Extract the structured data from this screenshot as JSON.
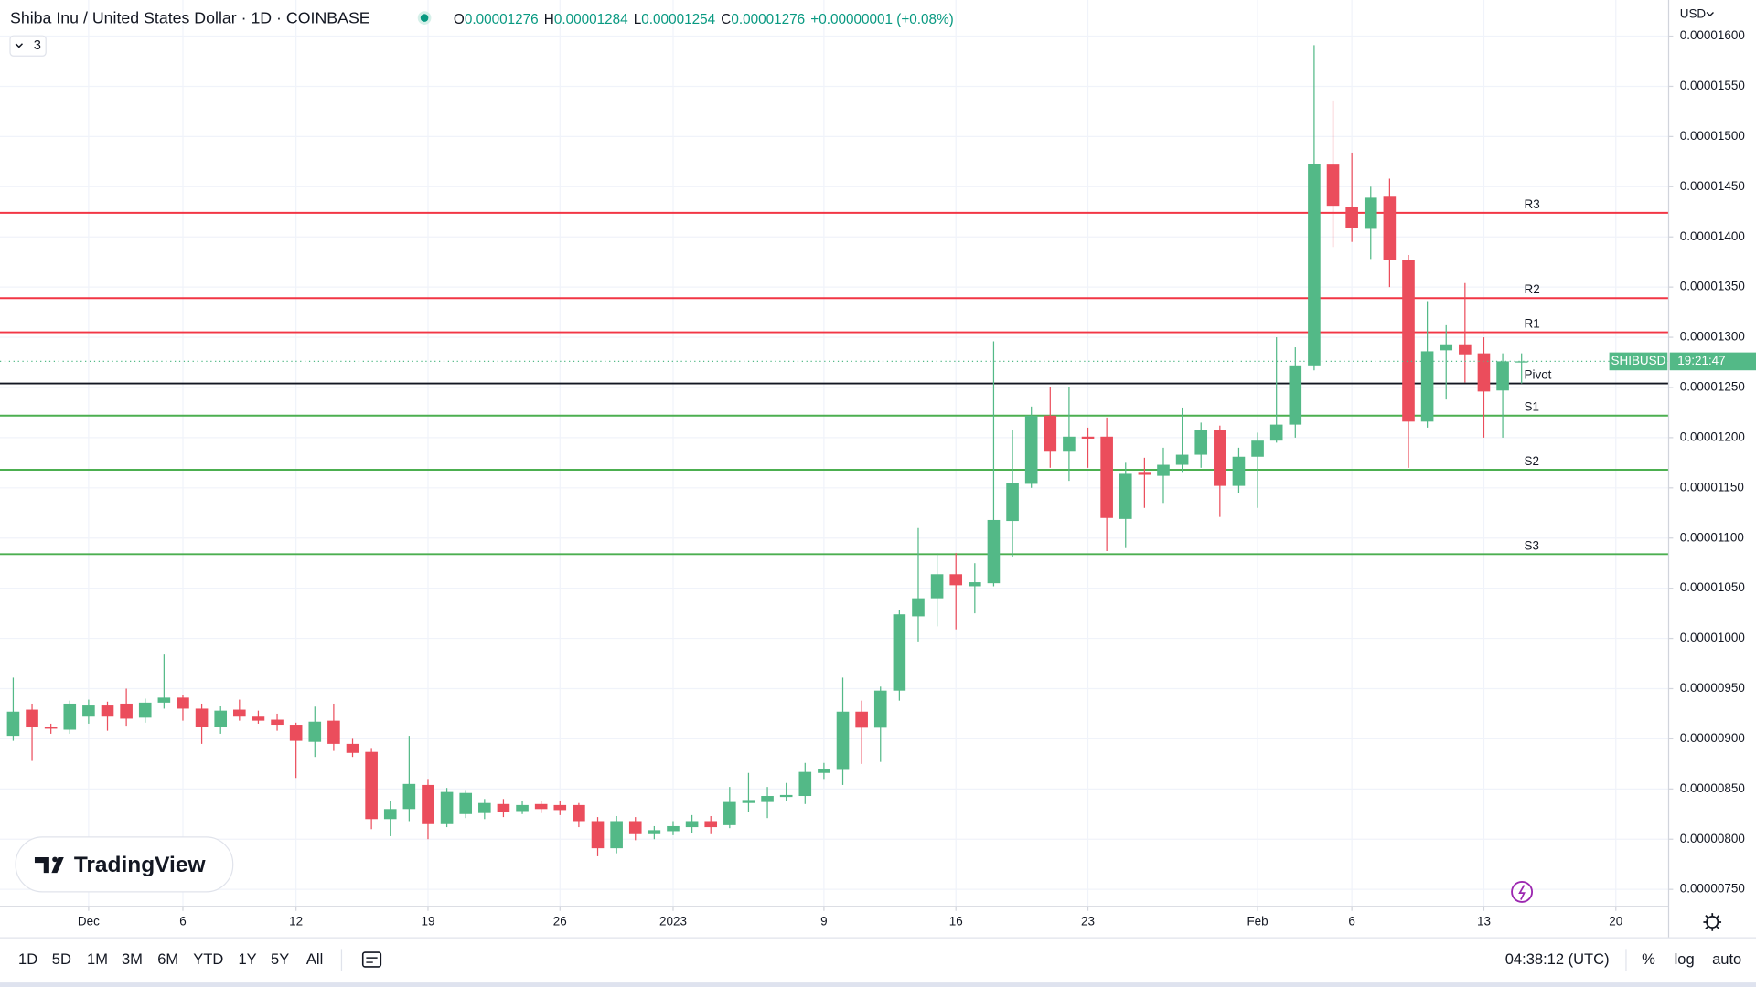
{
  "header": {
    "title": "Shiba Inu / United States Dollar · 1D · COINBASE",
    "ohlc": [
      {
        "key": "O",
        "value": "0.00001276"
      },
      {
        "key": "H",
        "value": "0.00001284"
      },
      {
        "key": "L",
        "value": "0.00001254"
      },
      {
        "key": "C",
        "value": "0.00001276"
      }
    ],
    "change": "+0.00000001 (+0.08%)",
    "indicators": "3",
    "currency": "USD"
  },
  "chart_data": {
    "type": "candlestick",
    "up_color": "#53b987",
    "down_color": "#eb4d5c",
    "grid": true,
    "series": [
      {
        "name": "SHIBUSD",
        "open": [
          9.03e-06,
          9.29e-06,
          9.12e-06,
          9.09e-06,
          9.22e-06,
          9.34e-06,
          9.35e-06,
          9.21e-06,
          9.36e-06,
          9.41e-06,
          9.3e-06,
          9.12e-06,
          9.29e-06,
          9.22e-06,
          9.19e-06,
          9.14e-06,
          8.97e-06,
          9.18e-06,
          8.95e-06,
          8.87e-06,
          8.2e-06,
          8.3e-06,
          8.54e-06,
          8.15e-06,
          8.25e-06,
          8.26e-06,
          8.35e-06,
          8.28e-06,
          8.35e-06,
          8.34e-06,
          8.34e-06,
          8.18e-06,
          7.91e-06,
          8.18e-06,
          8.05e-06,
          8.08e-06,
          8.12e-06,
          8.18e-06,
          8.14e-06,
          8.36e-06,
          8.37e-06,
          8.42e-06,
          8.43e-06,
          8.66e-06,
          8.69e-06,
          9.27e-06,
          9.11e-06,
          9.48e-06,
          1.022e-05,
          1.04e-05,
          1.064e-05,
          1.052e-05,
          1.055e-05,
          1.117e-05,
          1.154e-05,
          1.222e-05,
          1.186e-05,
          1.201e-05,
          1.201e-05,
          1.119e-05,
          1.165e-05,
          1.162e-05,
          1.173e-05,
          1.183e-05,
          1.208e-05,
          1.152e-05,
          1.181e-05,
          1.197e-05,
          1.213e-05,
          1.272e-05,
          1.472e-05,
          1.43e-05,
          1.408e-05,
          1.44e-05,
          1.377e-05,
          1.216e-05,
          1.287e-05,
          1.293e-05,
          1.284e-05,
          1.247e-05,
          1.276e-05
        ],
        "high": [
          9.61e-06,
          9.35e-06,
          9.15e-06,
          9.38e-06,
          9.39e-06,
          9.37e-06,
          9.5e-06,
          9.4e-06,
          9.84e-06,
          9.44e-06,
          9.35e-06,
          9.33e-06,
          9.39e-06,
          9.28e-06,
          9.25e-06,
          9.16e-06,
          9.32e-06,
          9.35e-06,
          9e-06,
          8.9e-06,
          8.38e-06,
          9.03e-06,
          8.6e-06,
          8.51e-06,
          8.49e-06,
          8.4e-06,
          8.4e-06,
          8.38e-06,
          8.38e-06,
          8.38e-06,
          8.36e-06,
          8.22e-06,
          8.23e-06,
          8.22e-06,
          8.13e-06,
          8.18e-06,
          8.24e-06,
          8.23e-06,
          8.52e-06,
          8.66e-06,
          8.52e-06,
          8.56e-06,
          8.76e-06,
          8.76e-06,
          9.61e-06,
          9.38e-06,
          9.52e-06,
          1.028e-05,
          1.11e-05,
          1.085e-05,
          1.085e-05,
          1.075e-05,
          1.296e-05,
          1.208e-05,
          1.231e-05,
          1.25e-05,
          1.25e-05,
          1.21e-05,
          1.22e-05,
          1.175e-05,
          1.18e-05,
          1.19e-05,
          1.23e-05,
          1.215e-05,
          1.212e-05,
          1.19e-05,
          1.205e-05,
          1.3e-05,
          1.29e-05,
          1.591e-05,
          1.536e-05,
          1.484e-05,
          1.45e-05,
          1.458e-05,
          1.382e-05,
          1.336e-05,
          1.312e-05,
          1.354e-05,
          1.3e-05,
          1.284e-05,
          1.284e-05
        ],
        "low": [
          8.98e-06,
          8.78e-06,
          9.05e-06,
          9.05e-06,
          9.15e-06,
          9.08e-06,
          9.13e-06,
          9.16e-06,
          9.3e-06,
          9.18e-06,
          8.95e-06,
          9.05e-06,
          9.18e-06,
          9.15e-06,
          9.08e-06,
          8.61e-06,
          8.82e-06,
          8.88e-06,
          8.82e-06,
          8.1e-06,
          8.03e-06,
          8.18e-06,
          8e-06,
          8.12e-06,
          8.21e-06,
          8.2e-06,
          8.22e-06,
          8.25e-06,
          8.26e-06,
          8.24e-06,
          8.12e-06,
          7.83e-06,
          7.86e-06,
          7.99e-06,
          8e-06,
          8.04e-06,
          8.06e-06,
          8.05e-06,
          8.11e-06,
          8.27e-06,
          8.21e-06,
          8.38e-06,
          8.35e-06,
          8.6e-06,
          8.54e-06,
          8.75e-06,
          8.77e-06,
          9.38e-06,
          9.97e-06,
          1.012e-05,
          1.009e-05,
          1.025e-05,
          1.052e-05,
          1.081e-05,
          1.15e-05,
          1.17e-05,
          1.157e-05,
          1.17e-05,
          1.087e-05,
          1.09e-05,
          1.13e-05,
          1.135e-05,
          1.165e-05,
          1.17e-05,
          1.121e-05,
          1.145e-05,
          1.13e-05,
          1.195e-05,
          1.2e-05,
          1.267e-05,
          1.39e-05,
          1.395e-05,
          1.378e-05,
          1.35e-05,
          1.17e-05,
          1.21e-05,
          1.238e-05,
          1.255e-05,
          1.2e-05,
          1.2e-05,
          1.254e-05
        ],
        "close": [
          9.27e-06,
          9.12e-06,
          9.1e-06,
          9.35e-06,
          9.34e-06,
          9.22e-06,
          9.2e-06,
          9.36e-06,
          9.41e-06,
          9.3e-06,
          9.12e-06,
          9.28e-06,
          9.22e-06,
          9.18e-06,
          9.14e-06,
          8.98e-06,
          9.17e-06,
          8.95e-06,
          8.86e-06,
          8.2e-06,
          8.3e-06,
          8.55e-06,
          8.15e-06,
          8.47e-06,
          8.46e-06,
          8.36e-06,
          8.27e-06,
          8.34e-06,
          8.3e-06,
          8.29e-06,
          8.18e-06,
          7.91e-06,
          8.18e-06,
          8.05e-06,
          8.09e-06,
          8.13e-06,
          8.18e-06,
          8.12e-06,
          8.37e-06,
          8.39e-06,
          8.43e-06,
          8.44e-06,
          8.67e-06,
          8.7e-06,
          9.27e-06,
          9.11e-06,
          9.48e-06,
          1.024e-05,
          1.04e-05,
          1.064e-05,
          1.053e-05,
          1.056e-05,
          1.118e-05,
          1.155e-05,
          1.222e-05,
          1.186e-05,
          1.201e-05,
          1.199e-05,
          1.12e-05,
          1.164e-05,
          1.163e-05,
          1.173e-05,
          1.183e-05,
          1.208e-05,
          1.152e-05,
          1.181e-05,
          1.197e-05,
          1.213e-05,
          1.272e-05,
          1.473e-05,
          1.431e-05,
          1.409e-05,
          1.439e-05,
          1.377e-05,
          1.216e-05,
          1.286e-05,
          1.293e-05,
          1.283e-05,
          1.246e-05,
          1.276e-05,
          1.276e-05
        ]
      }
    ],
    "price_label": {
      "symbol": "SHIBUSD",
      "countdown": "19:21:47"
    },
    "levels": [
      {
        "label": "R3",
        "value": 1.424e-05,
        "color": "#f23645"
      },
      {
        "label": "R2",
        "value": 1.339e-05,
        "color": "#f23645"
      },
      {
        "label": "R1",
        "value": 1.305e-05,
        "color": "#f23645"
      },
      {
        "label": "Pivot",
        "value": 1.254e-05,
        "color": "#131722"
      },
      {
        "label": "S1",
        "value": 1.222e-05,
        "color": "#4caf50"
      },
      {
        "label": "S2",
        "value": 1.168e-05,
        "color": "#4caf50"
      },
      {
        "label": "S3",
        "value": 1.084e-05,
        "color": "#4caf50"
      }
    ],
    "xlim": [
      -0.7,
      87.8
    ],
    "xticks": [
      {
        "value": 4,
        "label": "Dec"
      },
      {
        "value": 9,
        "label": "6"
      },
      {
        "value": 15,
        "label": "12"
      },
      {
        "value": 22,
        "label": "19"
      },
      {
        "value": 29,
        "label": "26"
      },
      {
        "value": 35,
        "label": "2023"
      },
      {
        "value": 43,
        "label": "9"
      },
      {
        "value": 50,
        "label": "16"
      },
      {
        "value": 57,
        "label": "23"
      },
      {
        "value": 66,
        "label": "Feb"
      },
      {
        "value": 71,
        "label": "6"
      },
      {
        "value": 78,
        "label": "13"
      },
      {
        "value": 85,
        "label": "20"
      }
    ],
    "ylim": [
      7.33e-06,
      1.636e-05
    ],
    "yticks": [
      {
        "value": 1.6e-05,
        "label": "0.00001600"
      },
      {
        "value": 1.55e-05,
        "label": "0.00001550"
      },
      {
        "value": 1.5e-05,
        "label": "0.00001500"
      },
      {
        "value": 1.45e-05,
        "label": "0.00001450"
      },
      {
        "value": 1.4e-05,
        "label": "0.00001400"
      },
      {
        "value": 1.35e-05,
        "label": "0.00001350"
      },
      {
        "value": 1.3e-05,
        "label": "0.00001300"
      },
      {
        "value": 1.25e-05,
        "label": "0.00001250"
      },
      {
        "value": 1.2e-05,
        "label": "0.00001200"
      },
      {
        "value": 1.15e-05,
        "label": "0.00001150"
      },
      {
        "value": 1.1e-05,
        "label": "0.00001100"
      },
      {
        "value": 1.05e-05,
        "label": "0.00001050"
      },
      {
        "value": 1e-05,
        "label": "0.00001000"
      },
      {
        "value": 9.5e-06,
        "label": "0.00000950"
      },
      {
        "value": 9e-06,
        "label": "0.00000900"
      },
      {
        "value": 8.5e-06,
        "label": "0.00000850"
      },
      {
        "value": 8e-06,
        "label": "0.00000800"
      },
      {
        "value": 7.5e-06,
        "label": "0.00000750"
      }
    ]
  },
  "logo": "TradingView",
  "toolbar": {
    "ranges": [
      "1D",
      "5D",
      "1M",
      "3M",
      "6M",
      "YTD",
      "1Y",
      "5Y",
      "All"
    ],
    "clock": "04:38:12 (UTC)",
    "options": [
      "%",
      "log",
      "auto"
    ]
  }
}
